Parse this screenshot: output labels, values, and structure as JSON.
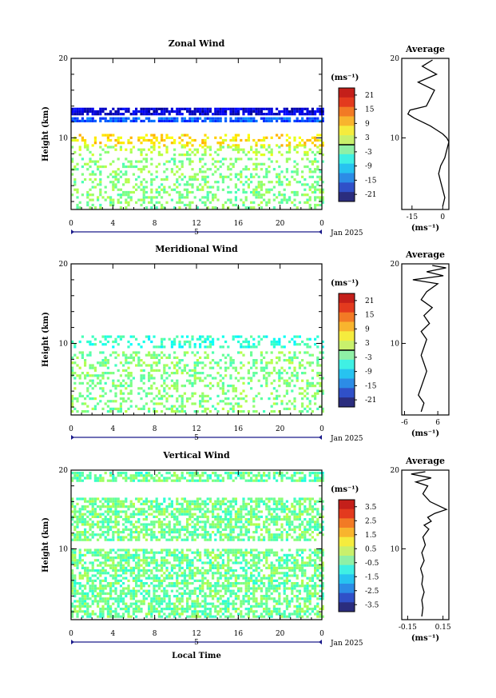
{
  "chart_data": [
    {
      "type": "heatmap",
      "title": "Zonal Wind",
      "ylabel": "Height (km)",
      "xlim": [
        0,
        24
      ],
      "ylim": [
        1,
        20
      ],
      "x_ticks": [
        "0",
        "4",
        "8",
        "12",
        "16",
        "20",
        "0"
      ],
      "y_ticks": [
        "10",
        "20"
      ],
      "date_label": "5",
      "month_label": "Jan 2025",
      "colorbar": {
        "unit": "(ms⁻¹)",
        "range": [
          -24,
          24
        ],
        "ticks": [
          "21",
          "15",
          "9",
          "3",
          "-3",
          "-9",
          "-15",
          "-21"
        ]
      },
      "layers": [
        {
          "from": 13.0,
          "to": 13.8,
          "value": -20
        },
        {
          "from": 12.0,
          "to": 12.6,
          "value": -14
        },
        {
          "from": 9.0,
          "to": 10.5,
          "value": 7
        },
        {
          "from": 8.0,
          "to": 9.0,
          "value": 2
        },
        {
          "from": 1.3,
          "to": 7.5,
          "value": 0
        }
      ],
      "profile": {
        "title": "Average",
        "xlabel": "(ms⁻¹)",
        "xlim": [
          -20,
          3
        ],
        "x_ticks": [
          "-15",
          "0"
        ],
        "y_ticks": [
          "10",
          "20"
        ],
        "x_ticks_at": [
          -15,
          0
        ],
        "heights": [
          1.4,
          2.5,
          3.5,
          4.5,
          5.5,
          6.5,
          7.5,
          8.5,
          9.5,
          10.0,
          10.5,
          11.0,
          11.5,
          12.0,
          12.5,
          13.0,
          13.5,
          14.0,
          15.0,
          16.0,
          17.0,
          18.0,
          19.0,
          19.8
        ],
        "values": [
          0,
          1,
          0,
          -1,
          -2,
          -1,
          1,
          2,
          3,
          2,
          0,
          -3,
          -6,
          -10,
          -14,
          -17,
          -16,
          -8,
          -6,
          -4,
          -12,
          -3,
          -10,
          -5
        ]
      }
    },
    {
      "type": "heatmap",
      "title": "Meridional Wind",
      "ylabel": "Height (km)",
      "xlim": [
        0,
        24
      ],
      "ylim": [
        1,
        20
      ],
      "x_ticks": [
        "0",
        "4",
        "8",
        "12",
        "16",
        "20",
        "0"
      ],
      "y_ticks": [
        "10",
        "20"
      ],
      "date_label": "5",
      "month_label": "Jan 2025",
      "colorbar": {
        "unit": "(ms⁻¹)",
        "range": [
          -24,
          24
        ],
        "ticks": [
          "21",
          "15",
          "9",
          "3",
          "-3",
          "-9",
          "-15",
          "-21"
        ]
      },
      "layers": [
        {
          "from": 9.5,
          "to": 11.0,
          "value": -4
        },
        {
          "from": 1.5,
          "to": 9.0,
          "value": 0
        }
      ],
      "profile": {
        "title": "Average",
        "xlabel": "(ms⁻¹)",
        "xlim": [
          -7,
          10
        ],
        "x_ticks": [
          "-6",
          "6"
        ],
        "y_ticks": [
          "10",
          "20"
        ],
        "x_ticks_at": [
          -6,
          6
        ],
        "heights": [
          1.4,
          2.5,
          3.5,
          4.5,
          5.5,
          6.5,
          7.5,
          8.5,
          9.5,
          10.5,
          11.5,
          12.5,
          13.5,
          14.5,
          15.5,
          16.5,
          17.5,
          18.0,
          18.5,
          19.0,
          19.5,
          19.8
        ],
        "values": [
          0,
          1,
          -1,
          0,
          1,
          2,
          1,
          0,
          1,
          2,
          0,
          3,
          1,
          4,
          0,
          2,
          6,
          -3,
          8,
          2,
          9,
          4
        ]
      }
    },
    {
      "type": "heatmap",
      "title": "Vertical Wind",
      "xlabel": "Local Time",
      "ylabel": "Height (km)",
      "xlim": [
        0,
        24
      ],
      "ylim": [
        1,
        20
      ],
      "x_ticks": [
        "0",
        "4",
        "8",
        "12",
        "16",
        "20",
        "0"
      ],
      "y_ticks": [
        "10",
        "20"
      ],
      "date_label": "5",
      "month_label": "Jan 2025",
      "colorbar": {
        "unit": "(ms⁻¹)",
        "range": [
          -4,
          4
        ],
        "ticks": [
          "3.5",
          "2.5",
          "1.5",
          "0.5",
          "-0.5",
          "-1.5",
          "-2.5",
          "-3.5"
        ]
      },
      "layers": [
        {
          "from": 18.5,
          "to": 19.8,
          "value": -0.2
        },
        {
          "from": 11.0,
          "to": 16.5,
          "value": -0.1
        },
        {
          "from": 1.3,
          "to": 10.0,
          "value": -0.15
        }
      ],
      "profile": {
        "title": "Average",
        "xlabel": "(ms⁻¹)",
        "xlim": [
          -0.2,
          0.2
        ],
        "x_ticks": [
          "-0.15",
          "0.15"
        ],
        "y_ticks": [
          "10",
          "20"
        ],
        "x_ticks_at": [
          -0.15,
          0.15
        ],
        "heights": [
          1.4,
          2.5,
          3.5,
          4.5,
          5.5,
          6.5,
          7.5,
          8.5,
          9.5,
          10.5,
          11.5,
          12.5,
          13.0,
          13.5,
          14.0,
          14.5,
          15.0,
          16.0,
          17.0,
          18.0,
          18.5,
          19.0,
          19.5,
          19.8
        ],
        "values": [
          -0.03,
          -0.02,
          -0.03,
          -0.01,
          -0.03,
          -0.02,
          -0.04,
          -0.01,
          -0.03,
          0.0,
          -0.02,
          0.03,
          -0.01,
          0.05,
          0.02,
          0.08,
          0.18,
          0.04,
          -0.02,
          0.02,
          -0.08,
          0.05,
          -0.12,
          0.0
        ]
      }
    }
  ]
}
